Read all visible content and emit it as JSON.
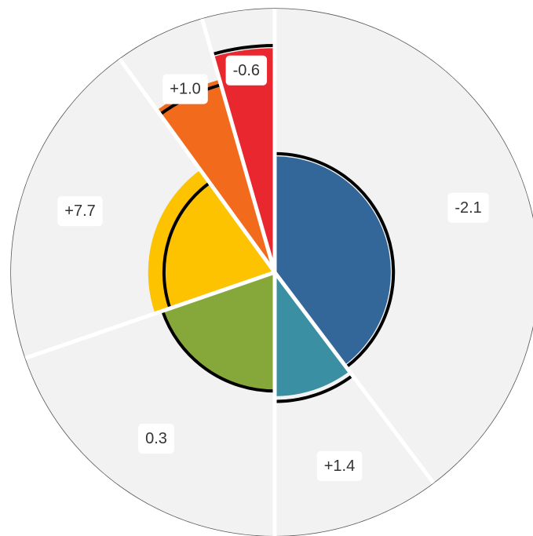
{
  "chart_data": {
    "type": "polar",
    "labels": [
      "-2.1",
      "+1.4",
      "0.3",
      "+7.7",
      "+1.0",
      "-0.6"
    ],
    "spans": [
      143,
      37,
      71,
      73,
      20,
      16
    ],
    "values": [
      44,
      47,
      45,
      48,
      76,
      85
    ],
    "previous": [
      45,
      49,
      45,
      42,
      74,
      86
    ],
    "colors": [
      "#336699",
      "#3a8fa3",
      "#86a83a",
      "#fdc300",
      "#f26b1d",
      "#e8282e"
    ],
    "ylim": [
      0,
      100
    ]
  }
}
